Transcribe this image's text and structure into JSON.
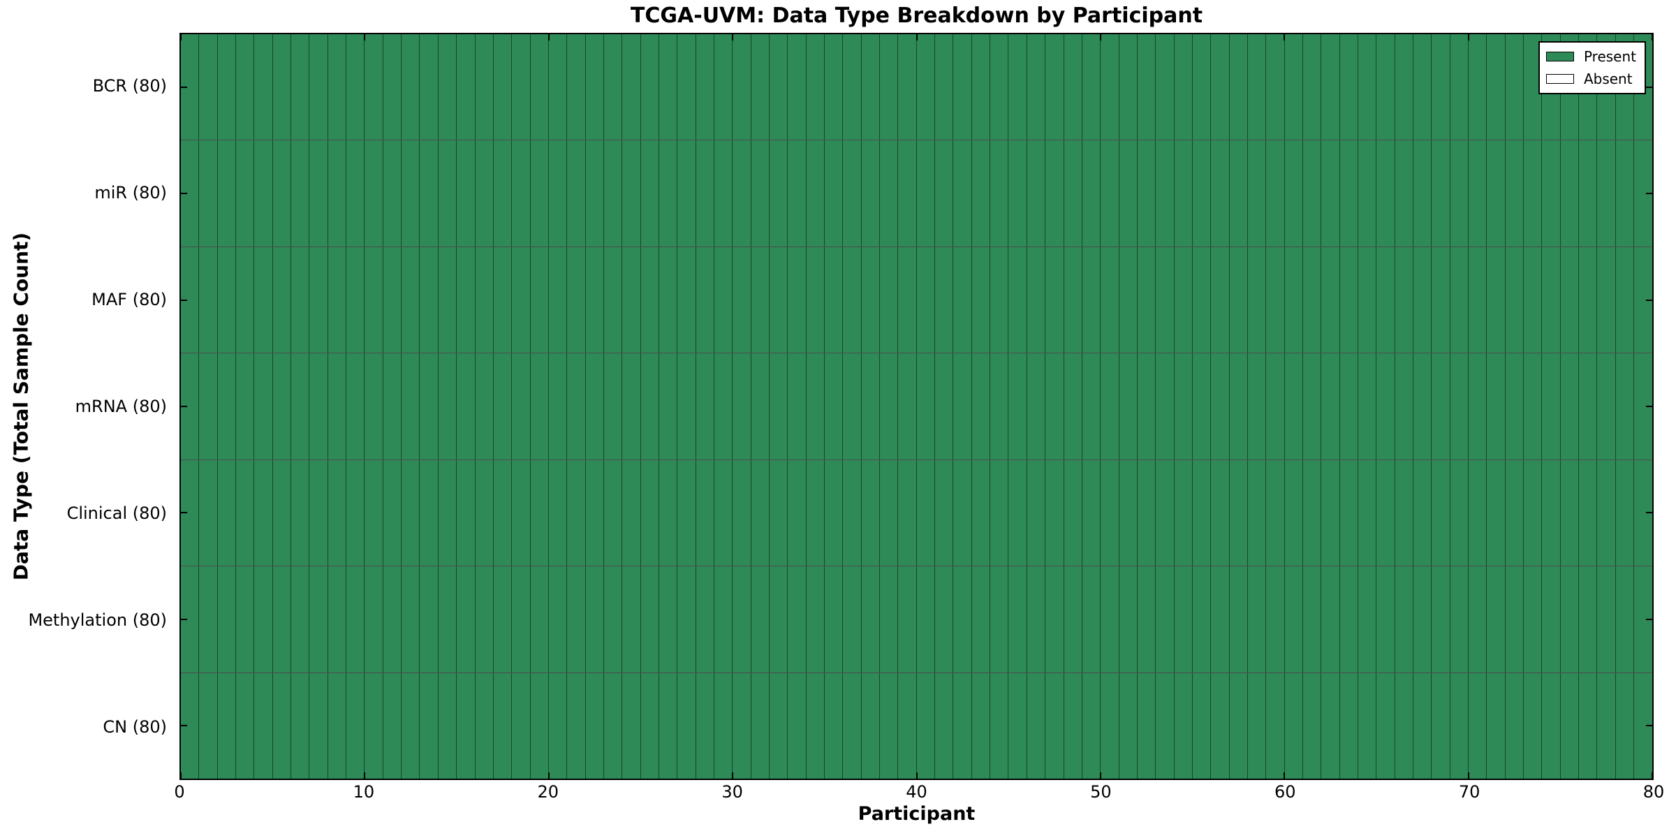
{
  "chart_data": {
    "type": "heatmap",
    "title": "TCGA-UVM: Data Type Breakdown by Participant",
    "xlabel": "Participant",
    "ylabel": "Data Type (Total Sample Count)",
    "x_range": [
      0,
      80
    ],
    "x_ticks": [
      0,
      10,
      20,
      30,
      40,
      50,
      60,
      70,
      80
    ],
    "n_participants": 80,
    "rows": [
      {
        "label": "BCR (80)",
        "total_samples": 80,
        "present": 80,
        "absent": 0
      },
      {
        "label": "miR (80)",
        "total_samples": 80,
        "present": 80,
        "absent": 0
      },
      {
        "label": "MAF (80)",
        "total_samples": 80,
        "present": 80,
        "absent": 0
      },
      {
        "label": "mRNA (80)",
        "total_samples": 80,
        "present": 80,
        "absent": 0
      },
      {
        "label": "Clinical (80)",
        "total_samples": 80,
        "present": 80,
        "absent": 0
      },
      {
        "label": "Methylation (80)",
        "total_samples": 80,
        "present": 80,
        "absent": 0
      },
      {
        "label": "CN (80)",
        "total_samples": 80,
        "present": 80,
        "absent": 0
      }
    ],
    "all_cells": "present",
    "colors": {
      "present": "#2E8B57",
      "absent": "#FFFFFF"
    },
    "legend": {
      "position": "upper right",
      "entries": [
        {
          "label": "Present",
          "value": "present",
          "color": "#2E8B57"
        },
        {
          "label": "Absent",
          "value": "absent",
          "color": "#FFFFFF"
        }
      ]
    },
    "grid": "cell borders on",
    "layout": {
      "legend_inside_plot": true,
      "ticks_direction": "in"
    }
  }
}
